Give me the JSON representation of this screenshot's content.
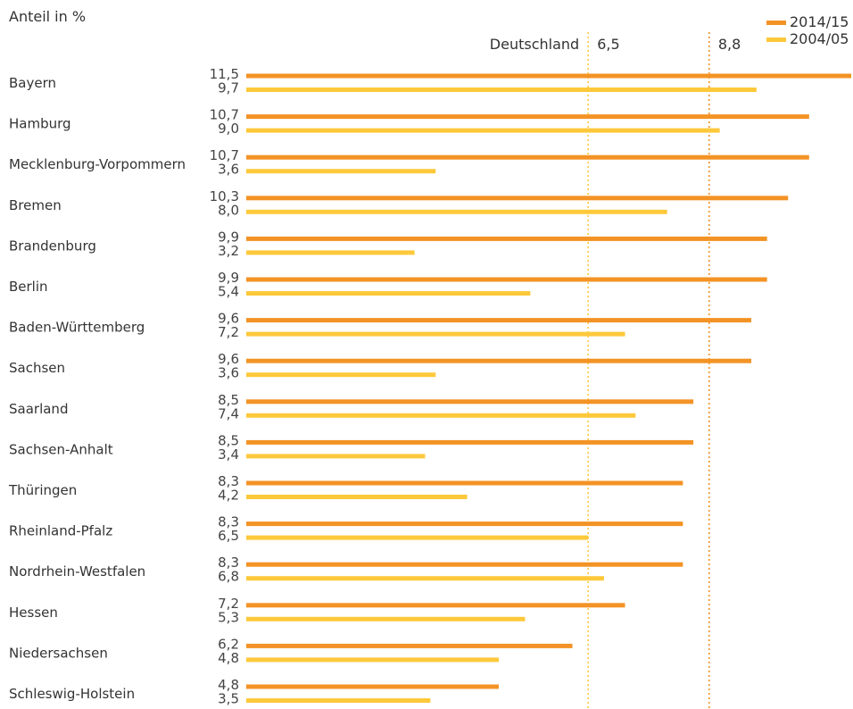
{
  "chart_data": {
    "type": "bar",
    "orientation": "horizontal",
    "ylabel": "Anteil in %",
    "categories": [
      "Bayern",
      "Hamburg",
      "Mecklenburg-Vorpommern",
      "Bremen",
      "Brandenburg",
      "Berlin",
      "Baden-Württemberg",
      "Sachsen",
      "Saarland",
      "Sachsen-Anhalt",
      "Thüringen",
      "Rheinland-Pfalz",
      "Nordrhein-Westfalen",
      "Hessen",
      "Niedersachsen",
      "Schleswig-Holstein"
    ],
    "series": [
      {
        "name": "2014/15",
        "color": "#f39325",
        "values": [
          11.5,
          10.7,
          10.7,
          10.3,
          9.9,
          9.9,
          9.6,
          9.6,
          8.5,
          8.5,
          8.3,
          8.3,
          8.3,
          7.2,
          6.2,
          4.8
        ],
        "labels": [
          "11,5",
          "10,7",
          "10,7",
          "10,3",
          "9,9",
          "9,9",
          "9,6",
          "9,6",
          "8,5",
          "8,5",
          "8,3",
          "8,3",
          "8,3",
          "7,2",
          "6,2",
          "4,8"
        ]
      },
      {
        "name": "2004/05",
        "color": "#fdc93b",
        "values": [
          9.7,
          9.0,
          3.6,
          8.0,
          3.2,
          5.4,
          7.2,
          3.6,
          7.4,
          3.4,
          4.2,
          6.5,
          6.8,
          5.3,
          4.8,
          3.5
        ],
        "labels": [
          "9,7",
          "9,0",
          "3,6",
          "8,0",
          "3,2",
          "5,4",
          "7,2",
          "3,6",
          "7,4",
          "3,4",
          "4,2",
          "6,5",
          "6,8",
          "5,3",
          "4,8",
          "3,5"
        ]
      }
    ],
    "reference_lines": [
      {
        "label": "Deutschland",
        "value": 6.5,
        "value_label": "6,5",
        "color": "#fdc93b"
      },
      {
        "label": "",
        "value": 8.8,
        "value_label": "8,8",
        "color": "#f39325"
      }
    ],
    "xlim": [
      0,
      11.5
    ],
    "legend_position": "top-right",
    "grid": false
  }
}
